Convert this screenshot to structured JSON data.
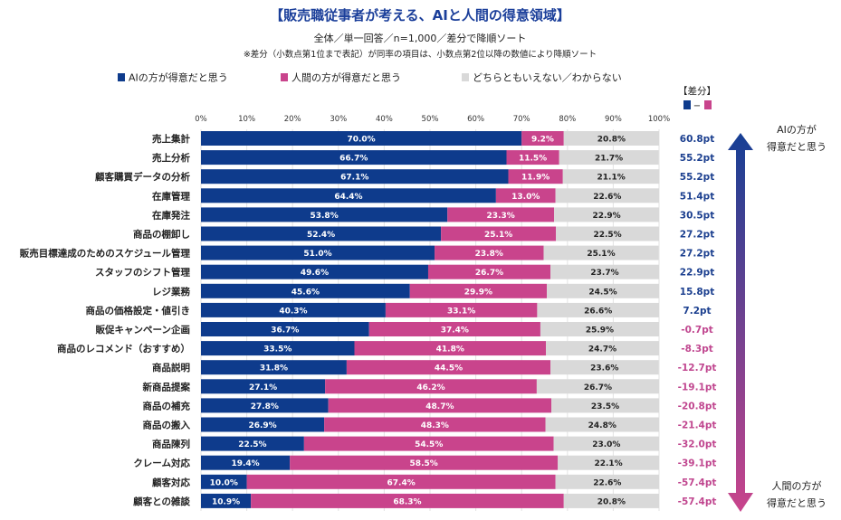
{
  "chart_data": {
    "type": "bar",
    "orientation": "horizontal",
    "stacked": true,
    "title": "【販売職従事者が考える、AIと人間の得意領域】",
    "subtitle": "全体／単一回答／n=1,000／差分で降順ソート",
    "note": "※差分（小数点第1位まで表記）が同率の項目は、小数点第2位以降の数値により降順ソート",
    "xlim": [
      0,
      100
    ],
    "ticks": [
      "0%",
      "10%",
      "20%",
      "30%",
      "40%",
      "50%",
      "60%",
      "70%",
      "80%",
      "90%",
      "100%"
    ],
    "grid": true,
    "legend_position": "top",
    "categories": [
      "売上集計",
      "売上分析",
      "顧客購買データの分析",
      "在庫管理",
      "在庫発注",
      "商品の棚卸し",
      "販売目標達成のためのスケジュール管理",
      "スタッフのシフト管理",
      "レジ業務",
      "商品の価格設定・値引き",
      "販促キャンペーン企画",
      "商品のレコメンド（おすすめ）",
      "商品説明",
      "新商品提案",
      "商品の補充",
      "商品の搬入",
      "商品陳列",
      "クレーム対応",
      "顧客対応",
      "顧客との雑談"
    ],
    "series": [
      {
        "name": "AIの方が得意だと思う",
        "color": "#0e3b8c",
        "values": [
          70.0,
          66.7,
          67.1,
          64.4,
          53.8,
          52.4,
          51.0,
          49.6,
          45.6,
          40.3,
          36.7,
          33.5,
          31.8,
          27.1,
          27.8,
          26.9,
          22.5,
          19.4,
          10.0,
          10.9
        ]
      },
      {
        "name": "人間の方が得意だと思う",
        "color": "#c9448c",
        "values": [
          9.2,
          11.5,
          11.9,
          13.0,
          23.3,
          25.1,
          23.8,
          26.7,
          29.9,
          33.1,
          37.4,
          41.8,
          44.5,
          46.2,
          48.7,
          48.3,
          54.5,
          58.5,
          67.4,
          68.3
        ]
      },
      {
        "name": "どちらともいえない／わからない",
        "color": "#d9d9d9",
        "values": [
          20.8,
          21.7,
          21.1,
          22.6,
          22.9,
          22.5,
          25.1,
          23.7,
          24.5,
          26.6,
          25.9,
          24.7,
          23.6,
          26.7,
          23.5,
          24.8,
          23.0,
          22.1,
          22.6,
          20.8
        ]
      }
    ],
    "diff": {
      "header": "【差分】",
      "formula_dash": "−",
      "labels": [
        "60.8pt",
        "55.2pt",
        "55.2pt",
        "51.4pt",
        "30.5pt",
        "27.2pt",
        "27.2pt",
        "22.9pt",
        "15.8pt",
        "7.2pt",
        "-0.7pt",
        "-8.3pt",
        "-12.7pt",
        "-19.1pt",
        "-20.8pt",
        "-21.4pt",
        "-32.0pt",
        "-39.1pt",
        "-57.4pt",
        "-57.4pt"
      ],
      "positive_color": "#1b3f8f",
      "negative_color": "#c0468f"
    },
    "arrow": {
      "top_label": [
        "AIの方が",
        "得意だと思う"
      ],
      "bottom_label": [
        "人間の方が",
        "得意だと思う"
      ]
    }
  }
}
